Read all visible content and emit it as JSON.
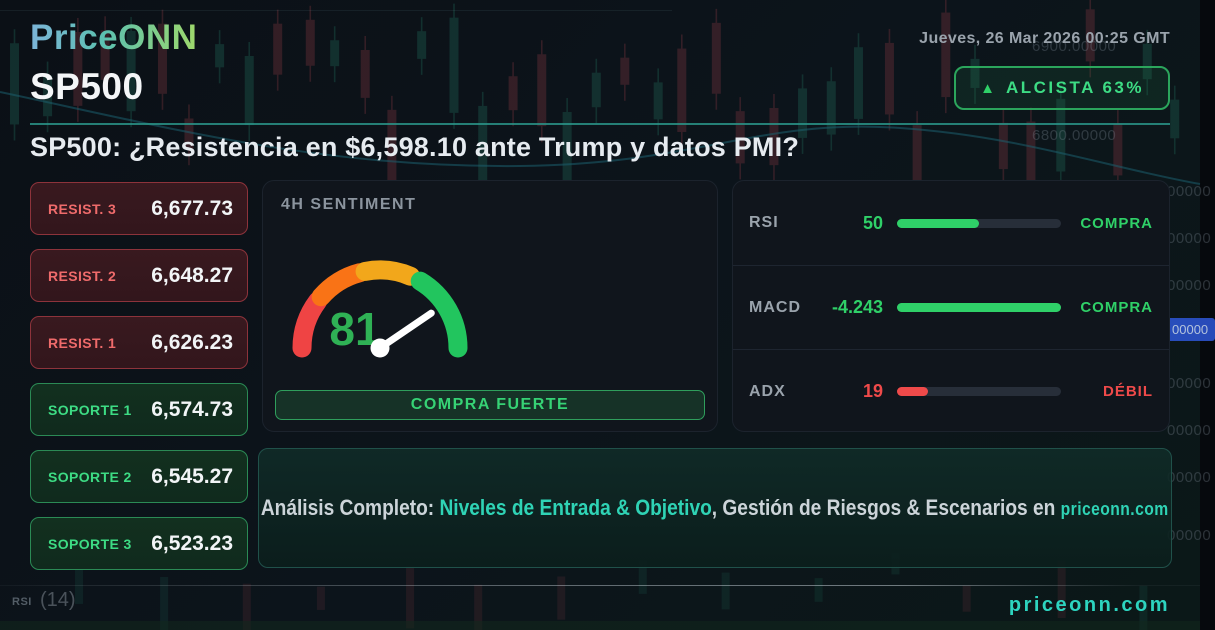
{
  "brand": {
    "logo": "PriceONN"
  },
  "header": {
    "date": "Jueves, 26 Mar 2026 00:25 GMT",
    "ticker": "SP500",
    "trend_badge": {
      "icon": "up-triangle",
      "label": "ALCISTA 63%"
    }
  },
  "headline": "SP500: ¿Resistencia en $6,598.10 ante Trump y datos PMI?",
  "levels": [
    {
      "type": "resistance",
      "label": "RESIST. 3",
      "value": "6,677.73"
    },
    {
      "type": "resistance",
      "label": "RESIST. 2",
      "value": "6,648.27"
    },
    {
      "type": "resistance",
      "label": "RESIST. 1",
      "value": "6,626.23"
    },
    {
      "type": "support",
      "label": "SOPORTE 1",
      "value": "6,574.73"
    },
    {
      "type": "support",
      "label": "SOPORTE 2",
      "value": "6,545.27"
    },
    {
      "type": "support",
      "label": "SOPORTE 3",
      "value": "6,523.23"
    }
  ],
  "sentiment": {
    "title": "4H SENTIMENT",
    "value": 81,
    "scale_min": 0,
    "scale_max": 100,
    "verdict": "COMPRA FUERTE",
    "gauge_segment_colors": [
      "#ef4444",
      "#f97316",
      "#f2a71b",
      "#22c55e"
    ]
  },
  "indicators": [
    {
      "name": "RSI",
      "value": "50",
      "status": "COMPRA",
      "fill_pct": 50,
      "color": "#2fd068"
    },
    {
      "name": "MACD",
      "value": "-4.243",
      "status": "COMPRA",
      "fill_pct": 100,
      "color": "#2fd068"
    },
    {
      "name": "ADX",
      "value": "19",
      "status": "DÉBIL",
      "fill_pct": 19,
      "color": "#ef4a4a"
    }
  ],
  "banner": {
    "prefix": "Análisis Completo: ",
    "highlight": "Niveles de Entrada & Objetivo",
    "middle": ", Gestión de Riesgos & Escenarios en ",
    "site": "priceonn.com"
  },
  "footer": {
    "site": "priceonn.com",
    "watermark_indicator": "RSI",
    "watermark_period": "(14)"
  },
  "background": {
    "price_label_1": "6900.00000",
    "price_label_2": "6800.00000",
    "edge_label": "00000",
    "blue_tag": "00000"
  },
  "colors": {
    "accent_teal": "#2dd4bf",
    "bull_green": "#3ddc84",
    "bear_red": "#ef6b6b",
    "divider_teal": "#2a9387",
    "panel_bg": "#10151c"
  }
}
